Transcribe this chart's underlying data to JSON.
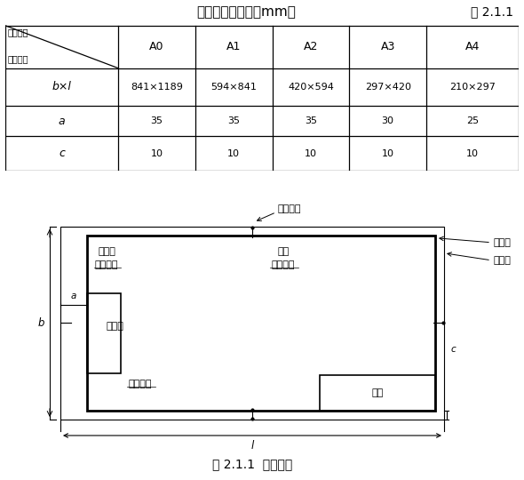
{
  "title": "图幅及图框尺寸（mm）",
  "table_number": "表 2.1.1",
  "col_headers": [
    "A0",
    "A1",
    "A2",
    "A3",
    "A4"
  ],
  "corner_top": "图幅代号",
  "corner_bottom": "尺寸代号",
  "row_headers": [
    "b×l",
    "a",
    "c"
  ],
  "cell_data": [
    [
      "841×1189",
      "594×841",
      "420×594",
      "297×420",
      "210×297"
    ],
    [
      "35",
      "35",
      "35",
      "30",
      "25"
    ],
    [
      "10",
      "10",
      "10",
      "10",
      "10"
    ]
  ],
  "fig_caption": "图 2.1.1  幅面格式",
  "label_duizhong": "对中标志",
  "label_zhuangding": "装订边",
  "label_jiaobiao": "角标",
  "label_huiqian": "会签杠",
  "label_tubiao": "图标",
  "label_tukuangxian": "图框线",
  "label_fumianxian": "幅面线",
  "bg_color": "#ffffff",
  "line_color": "#000000",
  "font_color": "#000000"
}
